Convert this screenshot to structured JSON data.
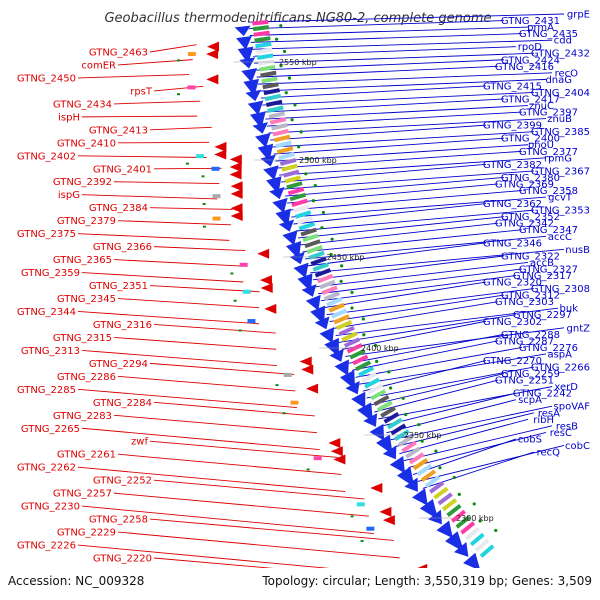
{
  "title": "Geobacillus thermodenitrificans NG80-2, complete genome",
  "footer": {
    "accession": "Accession: NC_009328",
    "summary": "Topology: circular; Length: 3,550,319 bp; Genes: 3,509"
  },
  "scale_marks": [
    "2550 kbp",
    "2500 kbp",
    "2450 kbp",
    "2400 kbp",
    "2350 kbp",
    "2300 kbp"
  ],
  "colors": {
    "left_labels": "#dd0000",
    "right_labels": "#0000cc",
    "backbone": "#888888",
    "forward_genes": "#1a2ee6",
    "tRNA_markers": "#0a8a0a"
  },
  "left_labels": [
    "GTNG_2463",
    "comER",
    "GTNG_2450",
    "rpsT",
    "GTNG_2434",
    "ispH",
    "GTNG_2413",
    "GTNG_2410",
    "GTNG_2402",
    "GTNG_2401",
    "GTNG_2392",
    "ispG",
    "GTNG_2384",
    "GTNG_2379",
    "GTNG_2375",
    "GTNG_2366",
    "GTNG_2365",
    "GTNG_2359",
    "GTNG_2351",
    "GTNG_2345",
    "GTNG_2344",
    "GTNG_2316",
    "GTNG_2315",
    "GTNG_2313",
    "GTNG_2294",
    "GTNG_2286",
    "GTNG_2285",
    "GTNG_2284",
    "GTNG_2283",
    "GTNG_2265",
    "zwf",
    "GTNG_2261",
    "GTNG_2262",
    "GTNG_2252",
    "GTNG_2257",
    "GTNG_2230",
    "GTNG_2258",
    "GTNG_2229",
    "GTNG_2226",
    "GTNG_2220"
  ],
  "right_labels": [
    "grpE",
    "GTNG_2431",
    "prmA",
    "GTNG_2435",
    "cdd",
    "rpoD",
    "GTNG_2432",
    "GTNG_2424",
    "GTNG_2416",
    "recO",
    "dnaG",
    "GTNG_2415",
    "GTNG_2404",
    "GTNG_2417",
    "znuC",
    "GTNG_2397",
    "znuB",
    "GTNG_2399",
    "GTNG_2385",
    "GTNG_2400",
    "phoU",
    "GTNG_2377",
    "rpmG",
    "GTNG_2382",
    "GTNG_2367",
    "GTNG_2380",
    "GTNG_2369",
    "GTNG_2358",
    "gcvT",
    "GTNG_2362",
    "GTNG_2353",
    "GTNG_2352",
    "GTNG_2342",
    "GTNG_2347",
    "accC",
    "GTNG_2346",
    "nusB",
    "GTNG_2322",
    "accB",
    "GTNG_2327",
    "GTNG_2317",
    "GTNG_2320",
    "GTNG_2308",
    "GTNG_2312",
    "GTNG_2303",
    "buk",
    "GTNG_2297",
    "GTNG_2302",
    "gntZ",
    "GTNG_2288",
    "GTNG_2287",
    "GTNG_2276",
    "aspA",
    "GTNG_2270",
    "GTNG_2266",
    "GTNG_2259",
    "GTNG_2251",
    "xerD",
    "GTNG_2242",
    "scpA",
    "spoVAF",
    "resA",
    "ribH",
    "resB",
    "resC",
    "cobS",
    "cobC",
    "recQ"
  ]
}
